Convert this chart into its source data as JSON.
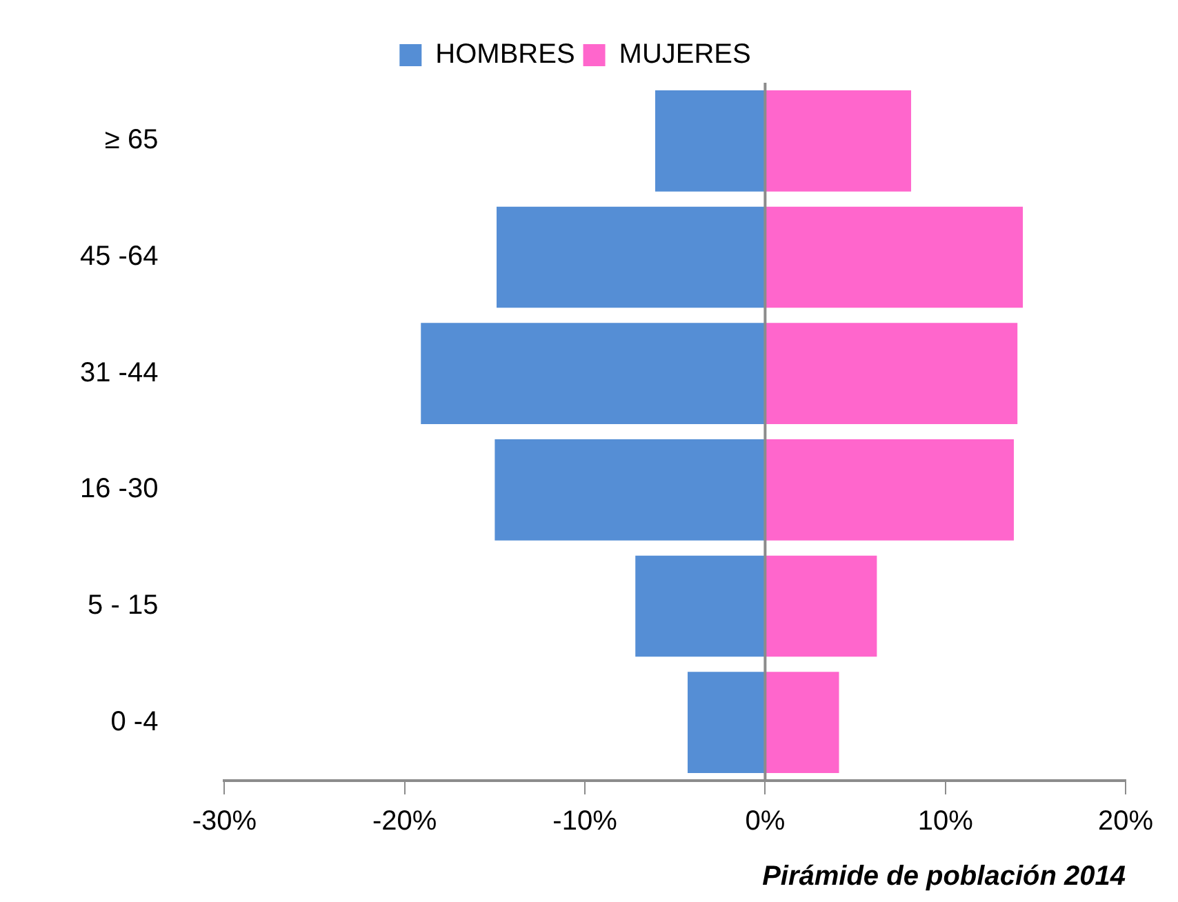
{
  "chart_data": {
    "type": "bar",
    "orientation": "horizontal",
    "stacked": true,
    "title": "Pirámide de población 2014",
    "categories": [
      "≥ 65",
      "45 -64",
      "31 -44",
      "16 -30",
      "5 - 15",
      "0 -4"
    ],
    "series": [
      {
        "name": "HOMBRES",
        "color": "#558ed5",
        "values": [
          -6.1,
          -14.9,
          -19.1,
          -15.0,
          -7.2,
          -4.3
        ]
      },
      {
        "name": "MUJERES",
        "color": "#ff66cc",
        "values": [
          8.1,
          14.3,
          14.0,
          13.8,
          6.2,
          4.1
        ]
      }
    ],
    "xlim": [
      -30,
      20
    ],
    "xticks": [
      {
        "value": -30,
        "label": "-30%"
      },
      {
        "value": -20,
        "label": "-20%"
      },
      {
        "value": -10,
        "label": "-10%"
      },
      {
        "value": 0,
        "label": "0%"
      },
      {
        "value": 10,
        "label": "10%"
      },
      {
        "value": 20,
        "label": "20%"
      }
    ],
    "ref_lines": [
      {
        "axis": "x",
        "value": 0,
        "color": "#8c8c8c"
      }
    ],
    "grid": false,
    "legend": "top"
  }
}
